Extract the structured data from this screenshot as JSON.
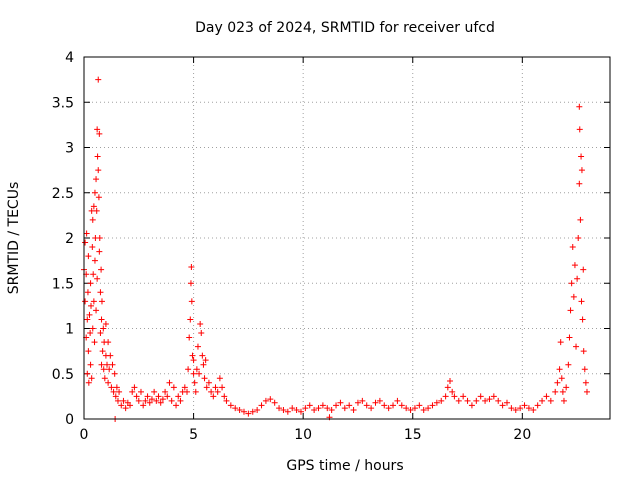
{
  "chart_data": {
    "type": "scatter",
    "title": "Day 023 of 2024, SRMTID for receiver ufcd",
    "xlabel": "GPS time / hours",
    "ylabel": "SRMTID / TECUs",
    "xlim": [
      0,
      24
    ],
    "ylim": [
      0,
      4
    ],
    "xticks": [
      0,
      5,
      10,
      15,
      20
    ],
    "xtick_labels": [
      "0",
      "5",
      "10",
      "15",
      "20"
    ],
    "yticks": [
      0,
      0.5,
      1,
      1.5,
      2,
      2.5,
      3,
      3.5,
      4
    ],
    "ytick_labels": [
      "0",
      "0.5",
      "1",
      "1.5",
      "2",
      "2.5",
      "3",
      "3.5",
      "4"
    ],
    "grid": true,
    "marker": "+",
    "color": "#ff0000",
    "series": [
      {
        "name": "SRMTID",
        "points": [
          [
            0.0,
            1.65
          ],
          [
            0.05,
            1.95
          ],
          [
            0.05,
            1.3
          ],
          [
            0.1,
            1.6
          ],
          [
            0.1,
            0.9
          ],
          [
            0.12,
            2.05
          ],
          [
            0.15,
            1.1
          ],
          [
            0.15,
            0.5
          ],
          [
            0.18,
            1.4
          ],
          [
            0.2,
            0.75
          ],
          [
            0.2,
            1.8
          ],
          [
            0.22,
            0.4
          ],
          [
            0.25,
            1.15
          ],
          [
            0.28,
            0.95
          ],
          [
            0.3,
            1.5
          ],
          [
            0.3,
            0.6
          ],
          [
            0.32,
            1.25
          ],
          [
            0.35,
            0.45
          ],
          [
            0.35,
            2.3
          ],
          [
            0.38,
            1.9
          ],
          [
            0.4,
            1.0
          ],
          [
            0.4,
            2.2
          ],
          [
            0.42,
            1.6
          ],
          [
            0.45,
            2.35
          ],
          [
            0.45,
            1.3
          ],
          [
            0.48,
            0.85
          ],
          [
            0.5,
            2.5
          ],
          [
            0.5,
            1.75
          ],
          [
            0.52,
            2.0
          ],
          [
            0.55,
            2.65
          ],
          [
            0.55,
            1.2
          ],
          [
            0.58,
            2.3
          ],
          [
            0.6,
            3.2
          ],
          [
            0.6,
            1.55
          ],
          [
            0.62,
            2.9
          ],
          [
            0.65,
            2.75
          ],
          [
            0.65,
            3.75
          ],
          [
            0.68,
            2.45
          ],
          [
            0.7,
            3.15
          ],
          [
            0.7,
            1.85
          ],
          [
            0.72,
            2.0
          ],
          [
            0.75,
            1.4
          ],
          [
            0.75,
            0.95
          ],
          [
            0.78,
            1.65
          ],
          [
            0.8,
            1.1
          ],
          [
            0.8,
            0.6
          ],
          [
            0.82,
            1.3
          ],
          [
            0.85,
            0.75
          ],
          [
            0.88,
            1.0
          ],
          [
            0.9,
            0.55
          ],
          [
            0.92,
            0.85
          ],
          [
            0.95,
            0.45
          ],
          [
            1.0,
            0.7
          ],
          [
            1.0,
            1.05
          ],
          [
            1.05,
            0.6
          ],
          [
            1.1,
            0.85
          ],
          [
            1.1,
            0.4
          ],
          [
            1.15,
            0.55
          ],
          [
            1.2,
            0.7
          ],
          [
            1.25,
            0.35
          ],
          [
            1.3,
            0.6
          ],
          [
            1.35,
            0.3
          ],
          [
            1.4,
            0.5
          ],
          [
            1.42,
            0.0
          ],
          [
            1.45,
            0.25
          ],
          [
            1.5,
            0.35
          ],
          [
            1.55,
            0.2
          ],
          [
            1.6,
            0.3
          ],
          [
            1.7,
            0.15
          ],
          [
            1.8,
            0.2
          ],
          [
            1.9,
            0.12
          ],
          [
            2.0,
            0.18
          ],
          [
            2.1,
            0.15
          ],
          [
            2.2,
            0.3
          ],
          [
            2.3,
            0.35
          ],
          [
            2.4,
            0.25
          ],
          [
            2.5,
            0.2
          ],
          [
            2.6,
            0.3
          ],
          [
            2.7,
            0.15
          ],
          [
            2.8,
            0.2
          ],
          [
            2.9,
            0.25
          ],
          [
            3.0,
            0.18
          ],
          [
            3.1,
            0.22
          ],
          [
            3.2,
            0.3
          ],
          [
            3.3,
            0.2
          ],
          [
            3.4,
            0.25
          ],
          [
            3.5,
            0.18
          ],
          [
            3.6,
            0.22
          ],
          [
            3.7,
            0.3
          ],
          [
            3.8,
            0.25
          ],
          [
            3.9,
            0.4
          ],
          [
            4.0,
            0.2
          ],
          [
            4.1,
            0.35
          ],
          [
            4.2,
            0.15
          ],
          [
            4.3,
            0.25
          ],
          [
            4.4,
            0.2
          ],
          [
            4.5,
            0.3
          ],
          [
            4.6,
            0.35
          ],
          [
            4.7,
            0.3
          ],
          [
            4.75,
            0.55
          ],
          [
            4.8,
            0.9
          ],
          [
            4.85,
            1.1
          ],
          [
            4.88,
            1.5
          ],
          [
            4.9,
            1.68
          ],
          [
            4.92,
            1.3
          ],
          [
            4.95,
            0.7
          ],
          [
            5.0,
            0.5
          ],
          [
            5.0,
            0.65
          ],
          [
            5.05,
            0.4
          ],
          [
            5.1,
            0.3
          ],
          [
            5.15,
            0.55
          ],
          [
            5.2,
            0.8
          ],
          [
            5.25,
            0.5
          ],
          [
            5.3,
            1.05
          ],
          [
            5.35,
            0.95
          ],
          [
            5.4,
            0.7
          ],
          [
            5.45,
            0.6
          ],
          [
            5.5,
            0.45
          ],
          [
            5.55,
            0.65
          ],
          [
            5.6,
            0.35
          ],
          [
            5.7,
            0.4
          ],
          [
            5.8,
            0.3
          ],
          [
            5.9,
            0.25
          ],
          [
            6.0,
            0.35
          ],
          [
            6.1,
            0.3
          ],
          [
            6.2,
            0.45
          ],
          [
            6.3,
            0.35
          ],
          [
            6.4,
            0.25
          ],
          [
            6.5,
            0.2
          ],
          [
            6.7,
            0.15
          ],
          [
            6.9,
            0.12
          ],
          [
            7.1,
            0.1
          ],
          [
            7.3,
            0.08
          ],
          [
            7.5,
            0.06
          ],
          [
            7.7,
            0.08
          ],
          [
            7.9,
            0.1
          ],
          [
            8.1,
            0.15
          ],
          [
            8.3,
            0.2
          ],
          [
            8.5,
            0.22
          ],
          [
            8.7,
            0.18
          ],
          [
            8.9,
            0.12
          ],
          [
            9.1,
            0.1
          ],
          [
            9.3,
            0.08
          ],
          [
            9.5,
            0.12
          ],
          [
            9.7,
            0.1
          ],
          [
            9.9,
            0.08
          ],
          [
            10.1,
            0.12
          ],
          [
            10.3,
            0.15
          ],
          [
            10.5,
            0.1
          ],
          [
            10.7,
            0.12
          ],
          [
            10.9,
            0.15
          ],
          [
            11.1,
            0.12
          ],
          [
            11.2,
            0.02
          ],
          [
            11.3,
            0.1
          ],
          [
            11.5,
            0.15
          ],
          [
            11.7,
            0.18
          ],
          [
            11.9,
            0.12
          ],
          [
            12.1,
            0.15
          ],
          [
            12.3,
            0.1
          ],
          [
            12.5,
            0.18
          ],
          [
            12.7,
            0.2
          ],
          [
            12.9,
            0.15
          ],
          [
            13.1,
            0.12
          ],
          [
            13.3,
            0.18
          ],
          [
            13.5,
            0.2
          ],
          [
            13.7,
            0.15
          ],
          [
            13.9,
            0.12
          ],
          [
            14.1,
            0.15
          ],
          [
            14.3,
            0.2
          ],
          [
            14.5,
            0.15
          ],
          [
            14.7,
            0.12
          ],
          [
            14.9,
            0.1
          ],
          [
            15.1,
            0.12
          ],
          [
            15.3,
            0.15
          ],
          [
            15.5,
            0.1
          ],
          [
            15.7,
            0.12
          ],
          [
            15.9,
            0.15
          ],
          [
            16.1,
            0.18
          ],
          [
            16.3,
            0.2
          ],
          [
            16.5,
            0.25
          ],
          [
            16.6,
            0.35
          ],
          [
            16.7,
            0.42
          ],
          [
            16.8,
            0.3
          ],
          [
            16.9,
            0.25
          ],
          [
            17.1,
            0.2
          ],
          [
            17.3,
            0.25
          ],
          [
            17.5,
            0.2
          ],
          [
            17.7,
            0.15
          ],
          [
            17.9,
            0.2
          ],
          [
            18.1,
            0.25
          ],
          [
            18.3,
            0.2
          ],
          [
            18.5,
            0.22
          ],
          [
            18.7,
            0.25
          ],
          [
            18.9,
            0.2
          ],
          [
            19.1,
            0.15
          ],
          [
            19.3,
            0.18
          ],
          [
            19.5,
            0.12
          ],
          [
            19.7,
            0.1
          ],
          [
            19.9,
            0.12
          ],
          [
            20.1,
            0.15
          ],
          [
            20.3,
            0.12
          ],
          [
            20.5,
            0.1
          ],
          [
            20.7,
            0.15
          ],
          [
            20.9,
            0.2
          ],
          [
            21.1,
            0.25
          ],
          [
            21.3,
            0.2
          ],
          [
            21.5,
            0.3
          ],
          [
            21.6,
            0.4
          ],
          [
            21.7,
            0.55
          ],
          [
            21.75,
            0.85
          ],
          [
            21.8,
            0.45
          ],
          [
            21.85,
            0.3
          ],
          [
            21.9,
            0.2
          ],
          [
            22.0,
            0.35
          ],
          [
            22.1,
            0.6
          ],
          [
            22.15,
            0.9
          ],
          [
            22.2,
            1.2
          ],
          [
            22.25,
            1.5
          ],
          [
            22.3,
            1.9
          ],
          [
            22.35,
            1.35
          ],
          [
            22.4,
            1.7
          ],
          [
            22.45,
            0.8
          ],
          [
            22.5,
            1.55
          ],
          [
            22.55,
            2.0
          ],
          [
            22.6,
            3.45
          ],
          [
            22.6,
            2.6
          ],
          [
            22.62,
            3.2
          ],
          [
            22.65,
            2.2
          ],
          [
            22.68,
            2.9
          ],
          [
            22.7,
            1.3
          ],
          [
            22.72,
            2.75
          ],
          [
            22.75,
            1.1
          ],
          [
            22.78,
            1.65
          ],
          [
            22.8,
            0.75
          ],
          [
            22.85,
            0.55
          ],
          [
            22.9,
            0.4
          ],
          [
            22.95,
            0.3
          ]
        ]
      }
    ]
  }
}
